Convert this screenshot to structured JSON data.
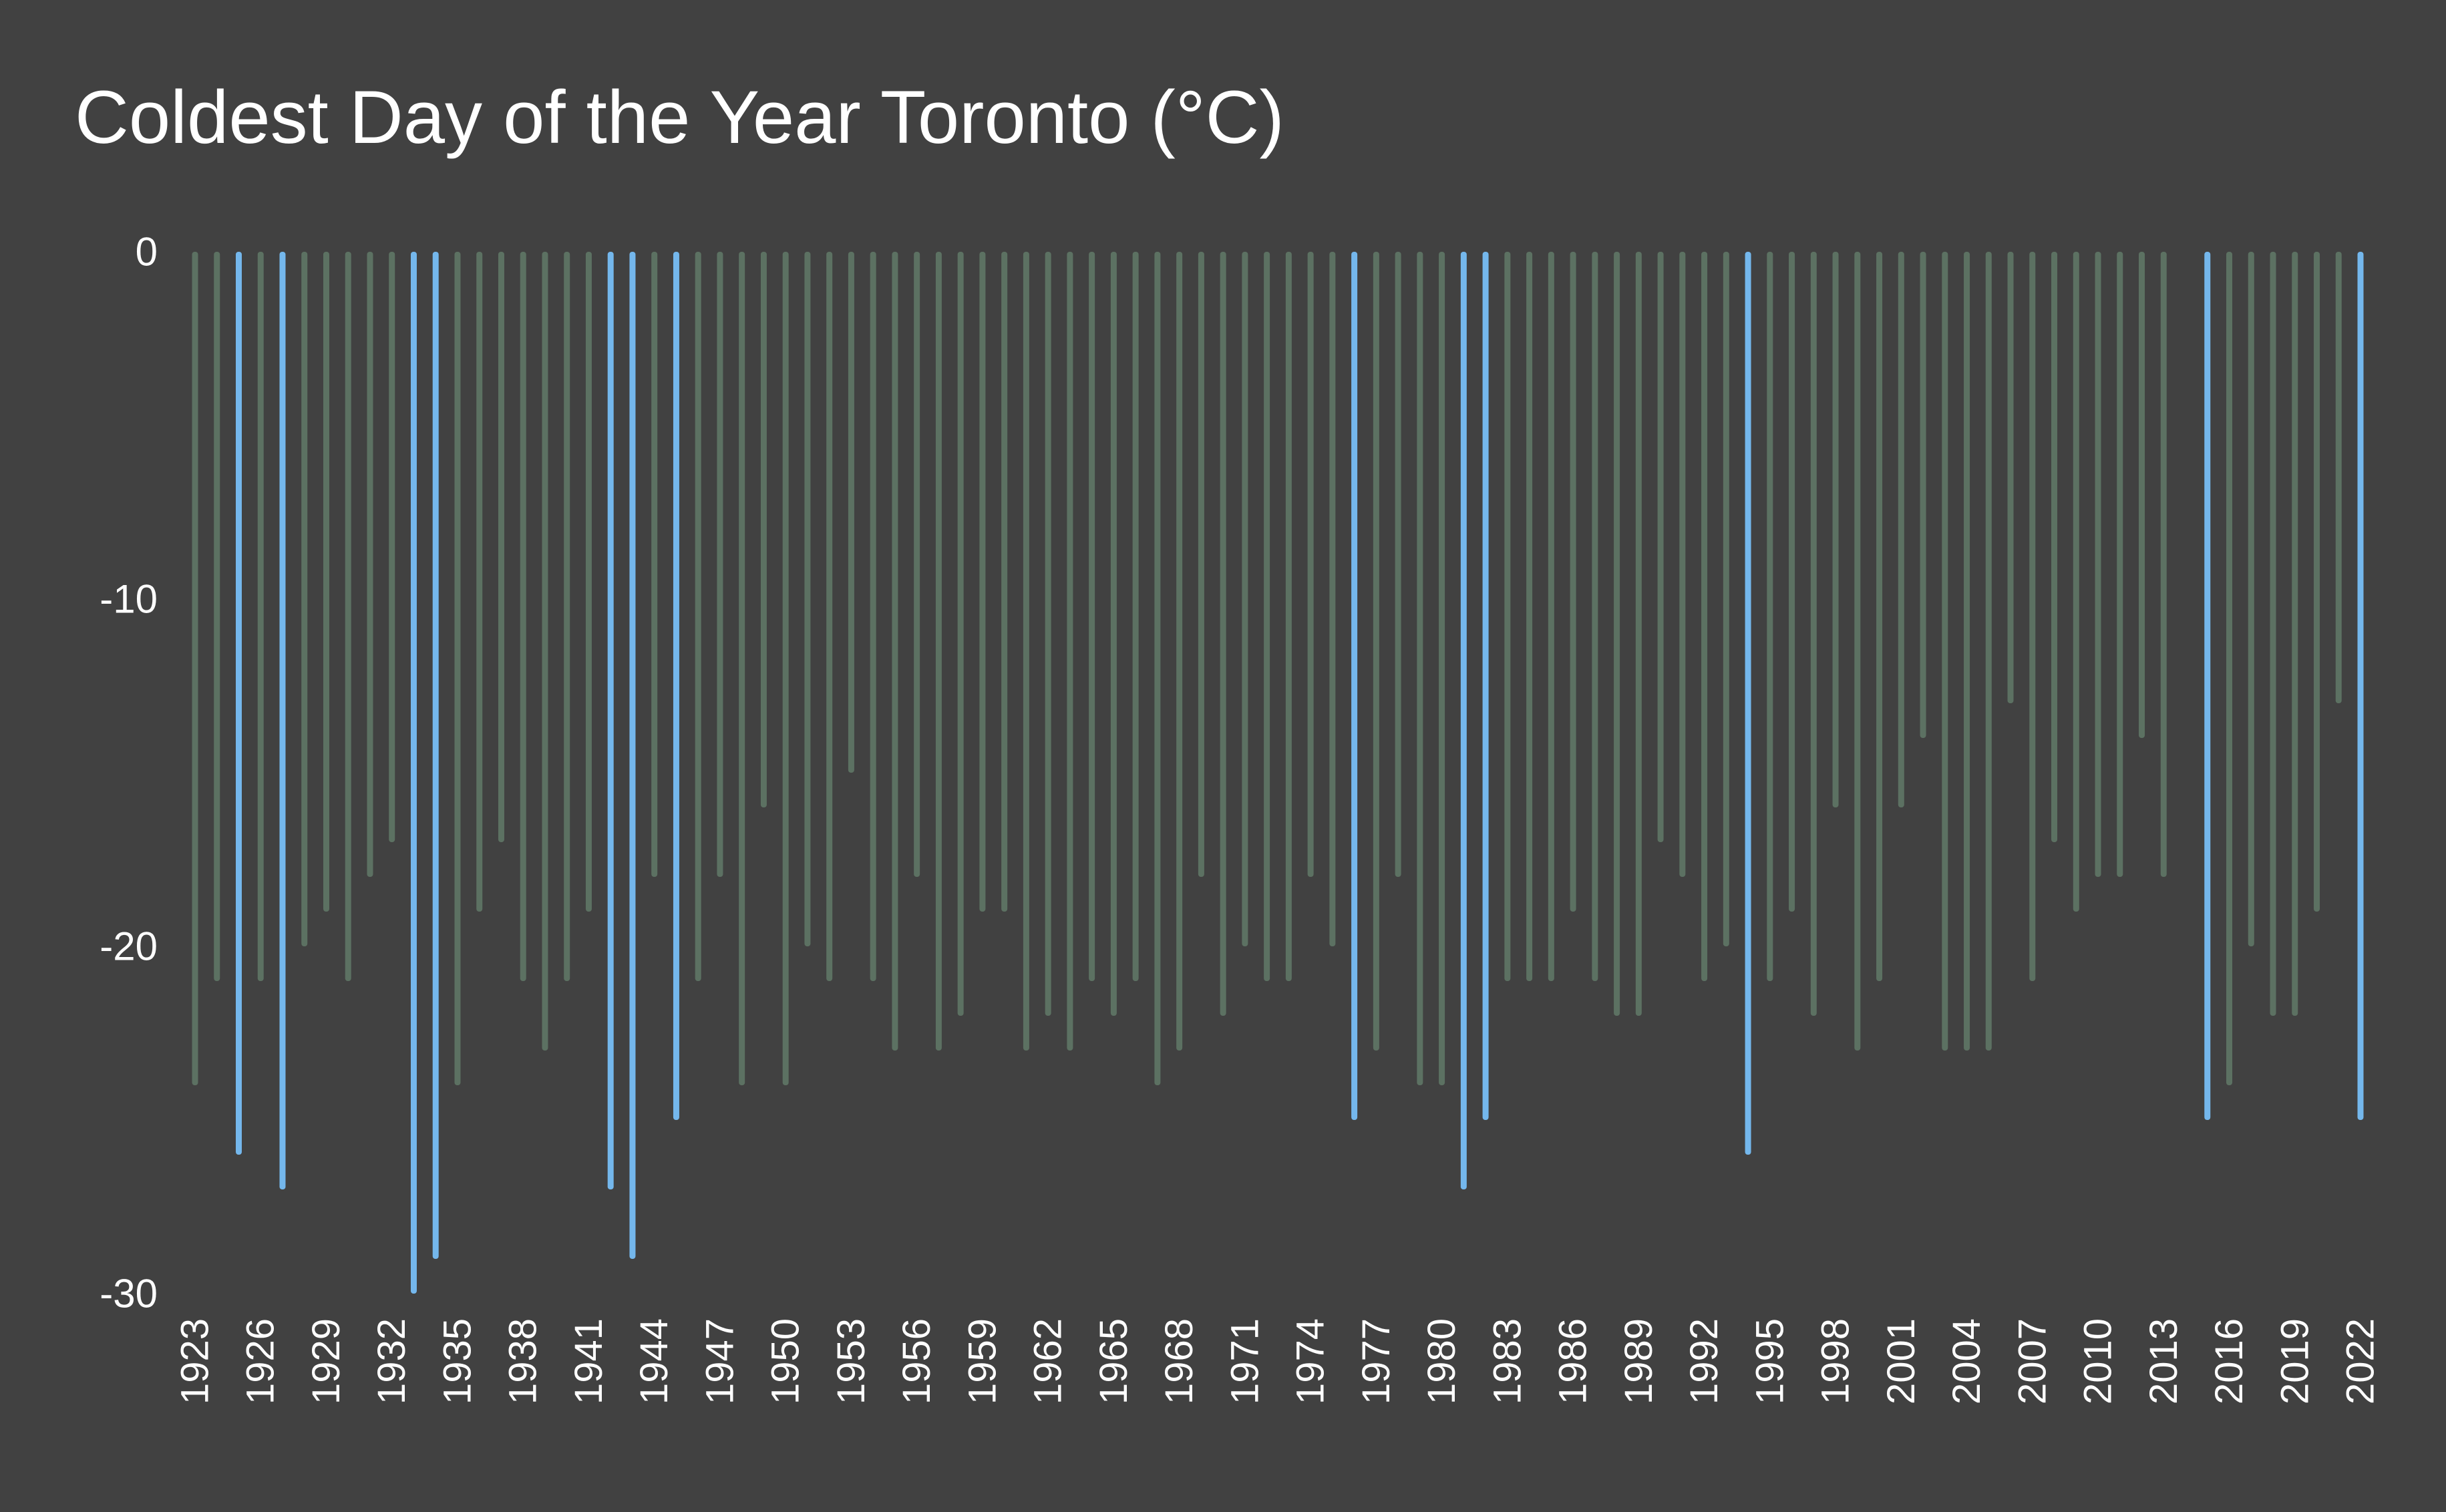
{
  "chart_data": {
    "type": "bar",
    "title": "Coldest Day of the Year Toronto (°C)",
    "xlabel": "",
    "ylabel": "",
    "ylim": [
      -30,
      0
    ],
    "yticks": [
      0,
      -10,
      -20,
      -30
    ],
    "grid": false,
    "legend": false,
    "colors": {
      "background": "#414141",
      "normal": "#5c7162",
      "highlight": "#74b7ec",
      "text": "#ffffff"
    },
    "highlight_rule": "value <= -25",
    "xtick_labels": [
      "1923",
      "1926",
      "1929",
      "1932",
      "1935",
      "1938",
      "1941",
      "1944",
      "1947",
      "1950",
      "1953",
      "1956",
      "1959",
      "1962",
      "1965",
      "1968",
      "1971",
      "1974",
      "1977",
      "1980",
      "1983",
      "1986",
      "1989",
      "1992",
      "1995",
      "1998",
      "2001",
      "2004",
      "2007",
      "2010",
      "2013",
      "2016",
      "2019",
      "2022"
    ],
    "x": [
      1923,
      1924,
      1925,
      1926,
      1927,
      1928,
      1929,
      1930,
      1931,
      1932,
      1933,
      1934,
      1935,
      1936,
      1937,
      1938,
      1939,
      1940,
      1941,
      1942,
      1943,
      1944,
      1945,
      1946,
      1947,
      1948,
      1949,
      1950,
      1951,
      1952,
      1953,
      1954,
      1955,
      1956,
      1957,
      1958,
      1959,
      1960,
      1961,
      1962,
      1963,
      1964,
      1965,
      1966,
      1967,
      1968,
      1969,
      1970,
      1971,
      1972,
      1973,
      1974,
      1975,
      1976,
      1977,
      1978,
      1979,
      1980,
      1981,
      1982,
      1983,
      1984,
      1985,
      1986,
      1987,
      1988,
      1989,
      1990,
      1991,
      1992,
      1993,
      1994,
      1995,
      1996,
      1997,
      1998,
      1999,
      2000,
      2001,
      2002,
      2003,
      2004,
      2005,
      2006,
      2007,
      2008,
      2009,
      2010,
      2011,
      2012,
      2013,
      2014,
      2015,
      2016,
      2017,
      2018,
      2019,
      2020,
      2021,
      2022
    ],
    "values": [
      -24,
      -21,
      -26,
      -21,
      -27,
      -20,
      -19,
      -21,
      -18,
      -17,
      -30,
      -29,
      -24,
      -19,
      -17,
      -21,
      -23,
      -21,
      -19,
      -27,
      -29,
      -18,
      -25,
      -21,
      -18,
      -24,
      -16,
      -24,
      -20,
      -21,
      -15,
      -21,
      -23,
      -18,
      -23,
      -22,
      -19,
      -19,
      -23,
      -22,
      -23,
      -21,
      -22,
      -21,
      -24,
      -23,
      -18,
      -22,
      -20,
      -21,
      -21,
      -18,
      -20,
      -25,
      -23,
      -18,
      -24,
      -24,
      -27,
      -25,
      -21,
      -21,
      -21,
      -19,
      -21,
      -22,
      -22,
      -17,
      -18,
      -21,
      -20,
      -26,
      -21,
      -19,
      -22,
      -16,
      -23,
      -21,
      -16,
      -14,
      -23,
      -23,
      -23,
      -13,
      -21,
      -17,
      -19,
      -18,
      -18,
      -14,
      -18,
      null,
      -25,
      -24,
      -20,
      -22,
      -22,
      -19,
      -13,
      -25
    ]
  }
}
